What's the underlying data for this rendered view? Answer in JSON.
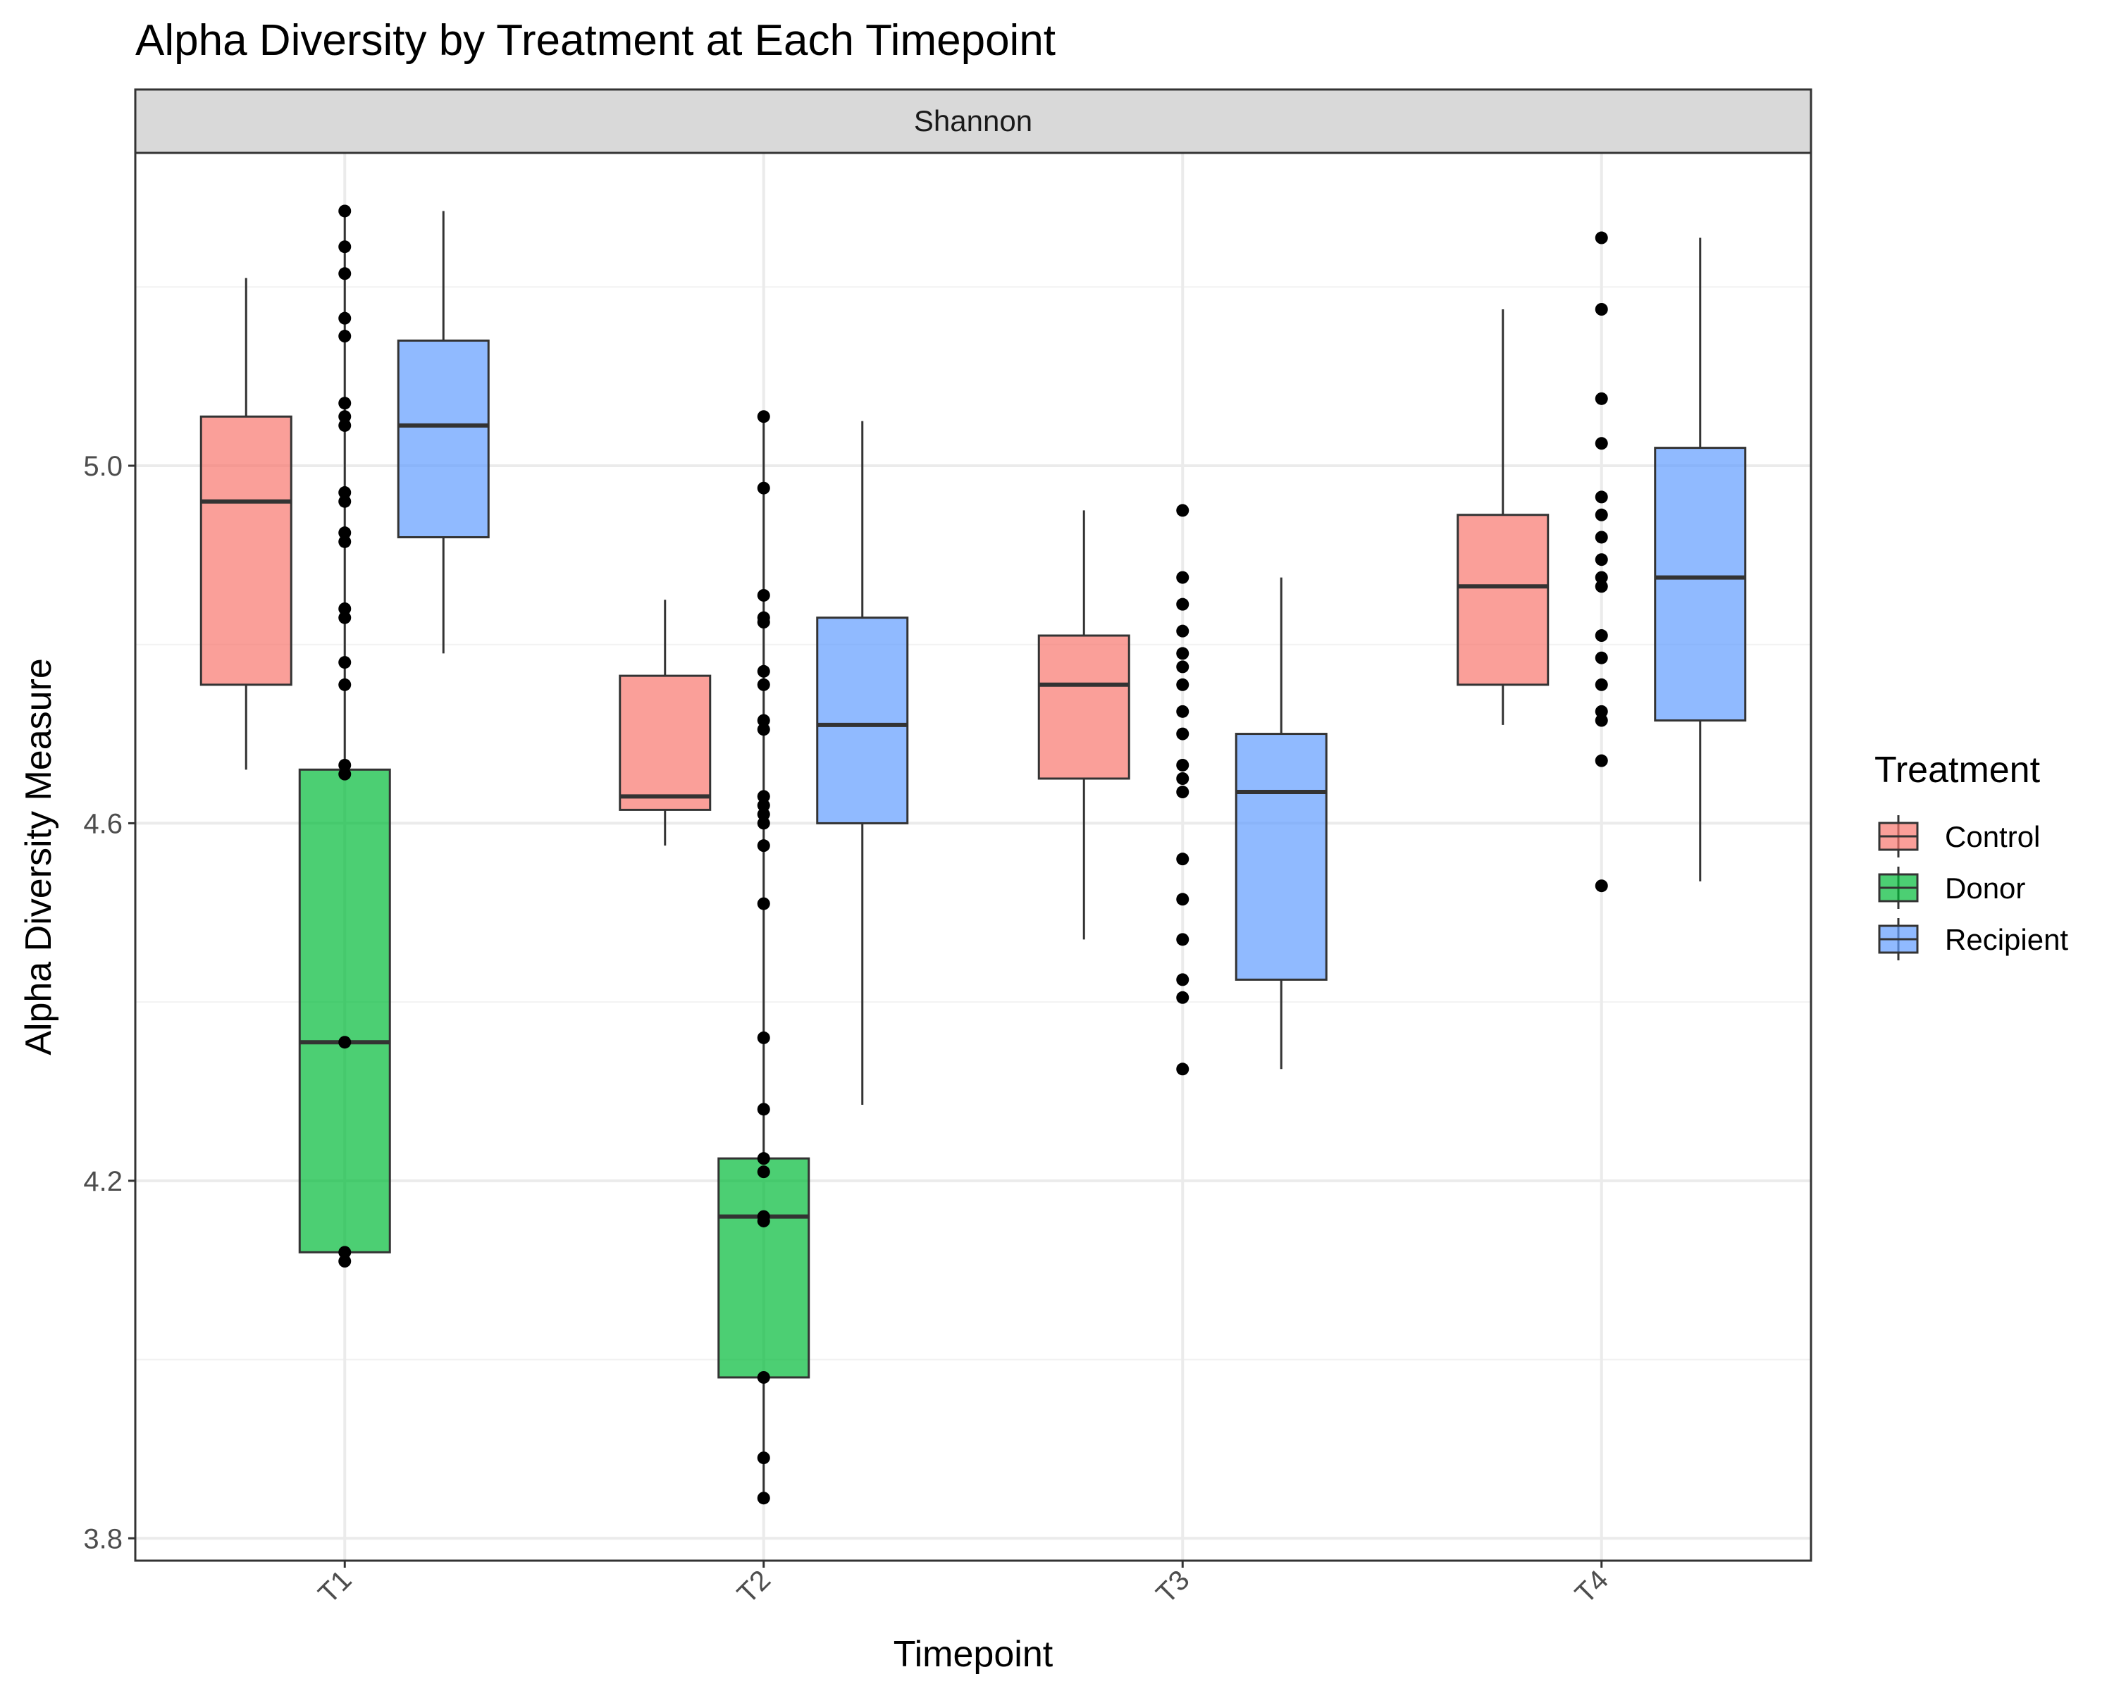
{
  "chart_data": {
    "type": "box",
    "title": "Alpha Diversity by Treatment at Each Timepoint",
    "facet": "Shannon",
    "xlabel": "Timepoint",
    "ylabel": "Alpha Diversity Measure",
    "categories": [
      "T1",
      "T2",
      "T3",
      "T4"
    ],
    "ylim": [
      3.775,
      5.35
    ],
    "yticks": [
      "3.8",
      "4.2",
      "4.6",
      "5.0"
    ],
    "yticks_values": [
      3.8,
      4.2,
      4.6,
      5.0
    ],
    "grid": true,
    "legend": {
      "title": "Treatment",
      "position": "right"
    },
    "series": [
      {
        "name": "Control",
        "color": "#f8766d",
        "boxes": [
          {
            "category": "T1",
            "min": 4.66,
            "q1": 4.755,
            "median": 4.96,
            "q3": 5.055,
            "max": 5.21
          },
          {
            "category": "T2",
            "min": 4.575,
            "q1": 4.615,
            "median": 4.63,
            "q3": 4.765,
            "max": 4.85
          },
          {
            "category": "T3",
            "min": 4.47,
            "q1": 4.65,
            "median": 4.755,
            "q3": 4.81,
            "max": 4.95
          },
          {
            "category": "T4",
            "min": 4.71,
            "q1": 4.755,
            "median": 4.865,
            "q3": 4.945,
            "max": 5.175
          }
        ]
      },
      {
        "name": "Donor",
        "color": "#00ba38",
        "boxes": [
          {
            "category": "T1",
            "min": 4.12,
            "q1": 4.12,
            "median": 4.355,
            "q3": 4.66,
            "max": 5.285
          },
          {
            "category": "T2",
            "min": 3.845,
            "q1": 3.98,
            "median": 4.16,
            "q3": 4.225,
            "max": 5.055
          }
        ]
      },
      {
        "name": "Recipient",
        "color": "#619cff",
        "boxes": [
          {
            "category": "T1",
            "min": 4.79,
            "q1": 4.92,
            "median": 5.045,
            "q3": 5.14,
            "max": 5.285
          },
          {
            "category": "T2",
            "min": 4.285,
            "q1": 4.6,
            "median": 4.71,
            "q3": 4.83,
            "max": 5.05
          },
          {
            "category": "T3",
            "min": 4.325,
            "q1": 4.425,
            "median": 4.635,
            "q3": 4.7,
            "max": 4.875
          },
          {
            "category": "T4",
            "min": 4.535,
            "q1": 4.715,
            "median": 4.875,
            "q3": 5.02,
            "max": 5.255
          }
        ]
      }
    ],
    "points": [
      {
        "category": "T1",
        "values": [
          5.285,
          5.245,
          5.215,
          5.165,
          5.145,
          5.07,
          5.055,
          5.045,
          4.97,
          4.96,
          4.925,
          4.915,
          4.84,
          4.83,
          4.78,
          4.755,
          4.665,
          4.655,
          4.355,
          4.12,
          4.11
        ]
      },
      {
        "category": "T2",
        "values": [
          5.055,
          4.975,
          4.855,
          4.83,
          4.825,
          4.77,
          4.755,
          4.715,
          4.705,
          4.63,
          4.62,
          4.61,
          4.6,
          4.575,
          4.51,
          4.36,
          4.28,
          4.225,
          4.21,
          4.16,
          4.155,
          3.98,
          3.89,
          3.845
        ]
      },
      {
        "category": "T3",
        "values": [
          4.95,
          4.875,
          4.845,
          4.815,
          4.79,
          4.775,
          4.755,
          4.725,
          4.7,
          4.665,
          4.65,
          4.635,
          4.56,
          4.515,
          4.47,
          4.425,
          4.405,
          4.325
        ]
      },
      {
        "category": "T4",
        "values": [
          5.255,
          5.175,
          5.075,
          5.025,
          4.965,
          4.945,
          4.92,
          4.895,
          4.875,
          4.865,
          4.81,
          4.785,
          4.755,
          4.725,
          4.715,
          4.67,
          4.53
        ]
      }
    ]
  }
}
